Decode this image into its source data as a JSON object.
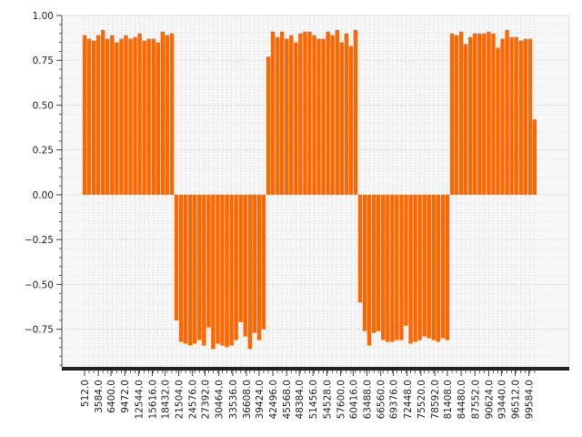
{
  "chart_data": {
    "type": "bar",
    "title": "",
    "xlabel": "",
    "ylabel": "",
    "ylim": [
      -0.96,
      1.0
    ],
    "grid": true,
    "bar_color": "#ff6600",
    "plot_background": "#f7f7f7",
    "x_tick_labels": [
      "512.0",
      "3584.0",
      "6400.0",
      "9472.0",
      "12544.0",
      "15616.0",
      "18432.0",
      "21504.0",
      "24576.0",
      "27392.0",
      "30464.0",
      "33536.0",
      "36608.0",
      "39424.0",
      "42496.0",
      "45568.0",
      "48384.0",
      "51456.0",
      "54528.0",
      "57600.0",
      "60416.0",
      "63488.0",
      "66560.0",
      "69376.0",
      "72448.0",
      "75520.0",
      "78592.0",
      "81408.0",
      "84480.0",
      "87552.0",
      "90624.0",
      "93440.0",
      "96512.0",
      "99584.0"
    ],
    "y_tick_labels": [
      "1.00",
      "0.75",
      "0.50",
      "0.25",
      "0.00",
      "−0.25",
      "−0.50",
      "−0.75"
    ],
    "y_tick_values": [
      1.0,
      0.75,
      0.5,
      0.25,
      0.0,
      -0.25,
      -0.5,
      -0.75
    ],
    "series": [
      {
        "x_start": 512,
        "x_step": 1024,
        "values": [
          0.89,
          0.87,
          0.86,
          0.89,
          0.92,
          0.87,
          0.89,
          0.85,
          0.87,
          0.89,
          0.87,
          0.88,
          0.9,
          0.86,
          0.87,
          0.87,
          0.85,
          0.91,
          0.89,
          0.9,
          -0.7,
          -0.82,
          -0.83,
          -0.84,
          -0.83,
          -0.81,
          -0.84,
          -0.74,
          -0.86,
          -0.83,
          -0.84,
          -0.85,
          -0.84,
          -0.81,
          -0.71,
          -0.79,
          -0.86,
          -0.77,
          -0.81,
          -0.75,
          0.77,
          0.91,
          0.88,
          0.91,
          0.87,
          0.89,
          0.85,
          0.9,
          0.91,
          0.91,
          0.89,
          0.87,
          0.87,
          0.91,
          0.89,
          0.92,
          0.85,
          0.9,
          0.83,
          0.92,
          -0.6,
          -0.76,
          -0.84,
          -0.77,
          -0.76,
          -0.81,
          -0.82,
          -0.82,
          -0.81,
          -0.81,
          -0.73,
          -0.83,
          -0.82,
          -0.81,
          -0.79,
          -0.8,
          -0.81,
          -0.82,
          -0.8,
          -0.81,
          0.9,
          0.89,
          0.91,
          0.84,
          0.88,
          0.9,
          0.9,
          0.9,
          0.91,
          0.9,
          0.82,
          0.87,
          0.92,
          0.88,
          0.88,
          0.86,
          0.87,
          0.87,
          0.42
        ]
      }
    ]
  }
}
